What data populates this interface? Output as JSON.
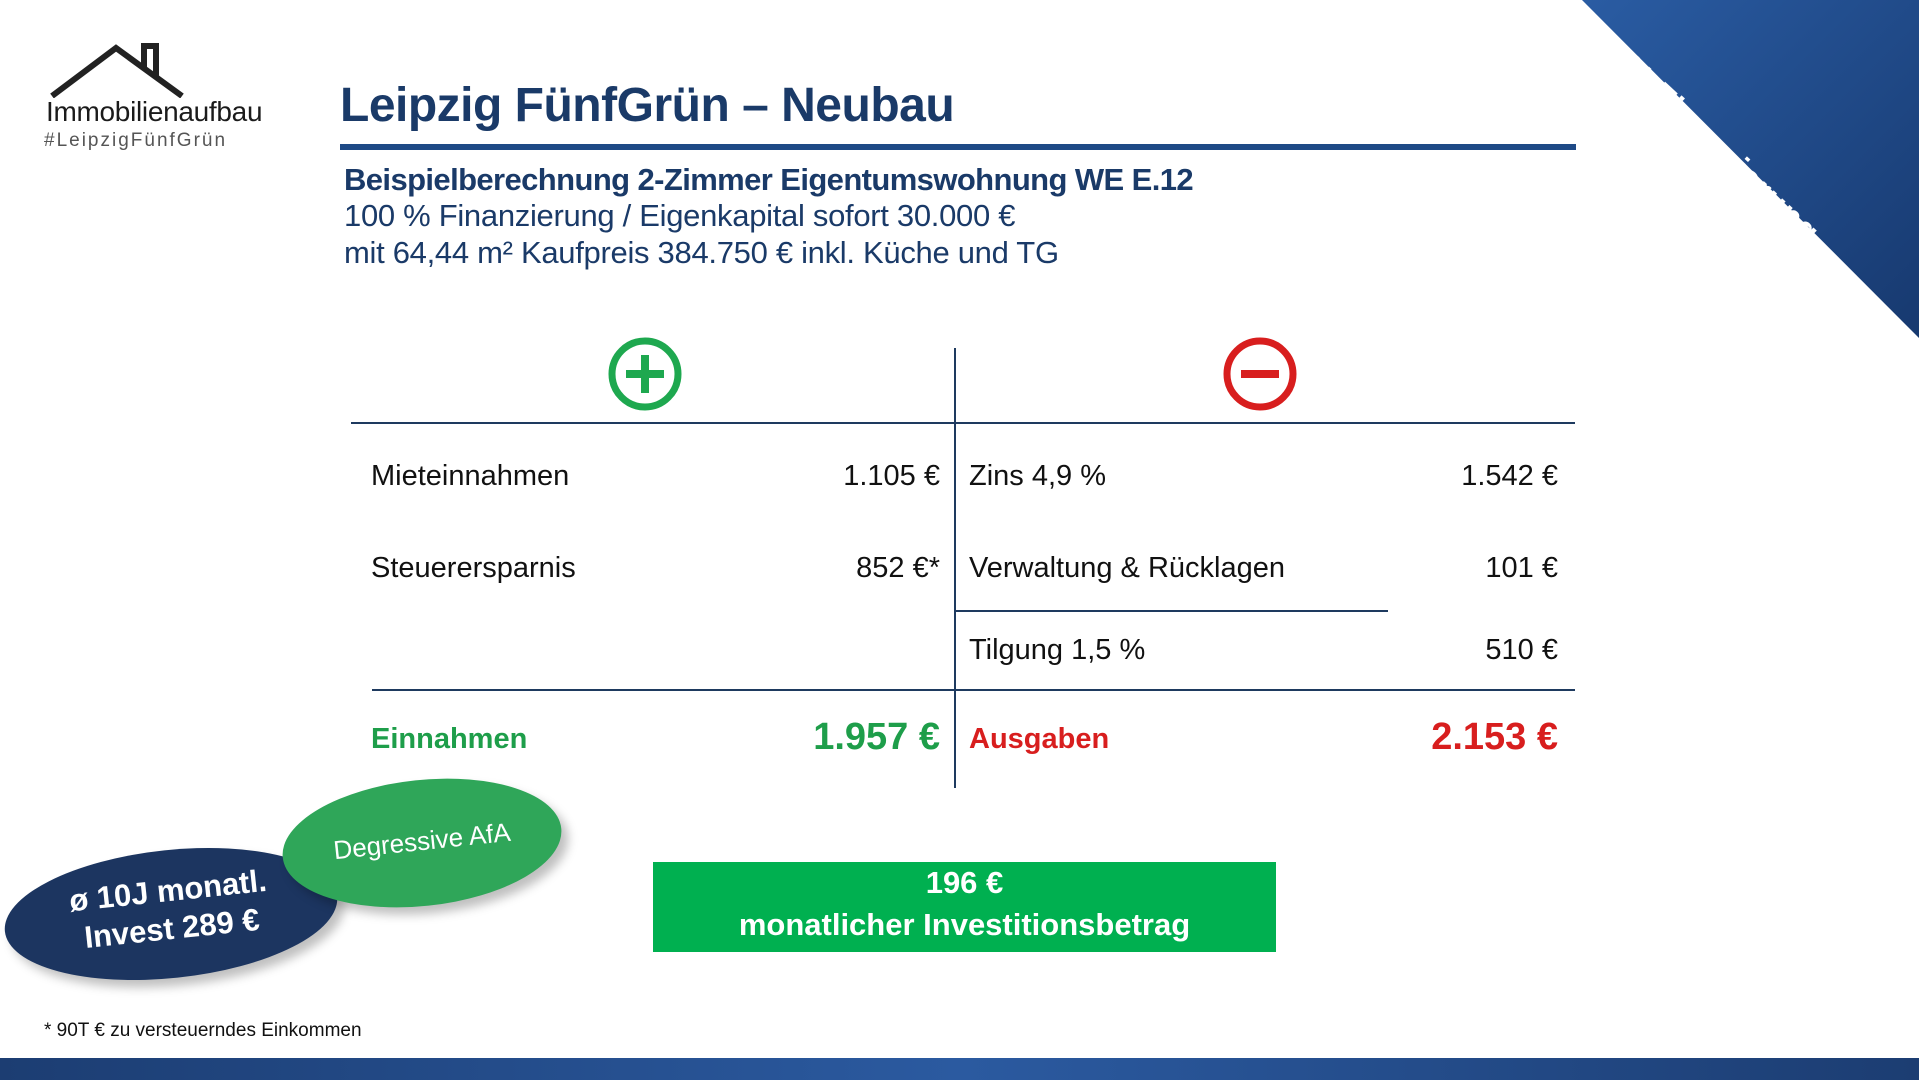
{
  "logo": {
    "name": "Immobilienaufbau",
    "tag": "#LeipzigFünfGrün"
  },
  "header": {
    "title": "Leipzig FünfGrün – Neubau",
    "subtitle_bold": "Beispielberechnung 2-Zimmer Eigentumswohnung WE E.12",
    "subtitle_line2": "100 % Finanzierung / Eigenkapital sofort 30.000 €",
    "subtitle_line3": "mit 64,44 m² Kaufpreis 384.750 € inkl. Küche und TG"
  },
  "ribbon": {
    "text": "100% Finanzierung"
  },
  "table": {
    "income": [
      {
        "label": "Mieteinnahmen",
        "value": "1.105 €"
      },
      {
        "label": "Steuerersparnis",
        "value": "852 €*"
      }
    ],
    "expenses": [
      {
        "label": "Zins 4,9 %",
        "value": "1.542 €"
      },
      {
        "label": "Verwaltung & Rücklagen",
        "value": "101 €"
      },
      {
        "label": "Tilgung 1,5 %",
        "value": "510 €"
      }
    ],
    "income_total": {
      "label": "Einnahmen",
      "value": "1.957 €"
    },
    "expense_total": {
      "label": "Ausgaben",
      "value": "2.153 €"
    }
  },
  "badges": {
    "afa": "Degressive AfA",
    "invest_line1": "ø 10J monatl.",
    "invest_line2": "Invest 289 €"
  },
  "invest_box": {
    "amount": "196 €",
    "label": "monatlicher Investitionsbetrag"
  },
  "footnote": "* 90T € zu versteuerndes Einkommen",
  "colors": {
    "navy": "#1a3a68",
    "green": "#1e9e4a",
    "red": "#d81e1e",
    "box_green": "#00b050"
  }
}
